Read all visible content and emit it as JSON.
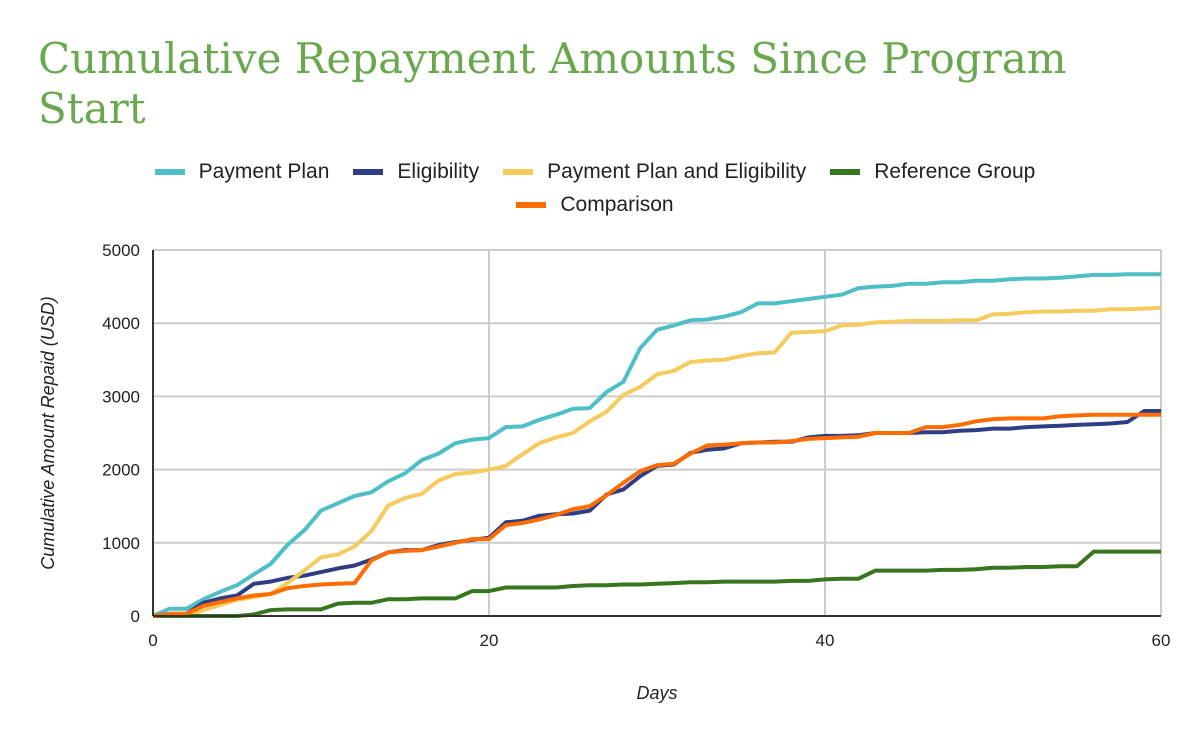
{
  "chart_data": {
    "type": "line",
    "title": "Cumulative Repayment Amounts Since Program Start",
    "xlabel": "Days",
    "ylabel": "Cumulative Amount Repaid (USD)",
    "xlim": [
      0,
      60
    ],
    "ylim": [
      0,
      5000
    ],
    "xticks": [
      0,
      20,
      40,
      60
    ],
    "yticks": [
      0,
      1000,
      2000,
      3000,
      4000,
      5000
    ],
    "grid": true,
    "legend_position": "top",
    "x": [
      0,
      1,
      2,
      3,
      4,
      5,
      6,
      7,
      8,
      9,
      10,
      11,
      12,
      13,
      14,
      15,
      16,
      17,
      18,
      19,
      20,
      21,
      22,
      23,
      24,
      25,
      26,
      27,
      28,
      29,
      30,
      31,
      32,
      33,
      34,
      35,
      36,
      37,
      38,
      39,
      40,
      41,
      42,
      43,
      44,
      45,
      46,
      47,
      48,
      49,
      50,
      51,
      52,
      53,
      54,
      55,
      56,
      57,
      58,
      59,
      60
    ],
    "series": [
      {
        "name": "Payment Plan",
        "color": "#4ebfc6",
        "values": [
          0,
          100,
          100,
          230,
          330,
          420,
          570,
          710,
          970,
          1170,
          1440,
          1540,
          1640,
          1690,
          1840,
          1950,
          2130,
          2220,
          2360,
          2410,
          2430,
          2580,
          2590,
          2680,
          2750,
          2830,
          2840,
          3060,
          3200,
          3660,
          3910,
          3970,
          4040,
          4050,
          4090,
          4150,
          4270,
          4270,
          4300,
          4330,
          4360,
          4390,
          4480,
          4500,
          4510,
          4540,
          4540,
          4560,
          4560,
          4580,
          4580,
          4600,
          4610,
          4610,
          4620,
          4640,
          4660,
          4660,
          4670,
          4670,
          4670
        ]
      },
      {
        "name": "Eligibility",
        "color": "#2e3e85",
        "values": [
          0,
          20,
          30,
          180,
          240,
          280,
          440,
          470,
          520,
          550,
          600,
          650,
          690,
          770,
          870,
          900,
          900,
          970,
          1010,
          1040,
          1070,
          1280,
          1300,
          1370,
          1390,
          1400,
          1440,
          1660,
          1730,
          1910,
          2050,
          2070,
          2230,
          2270,
          2290,
          2360,
          2370,
          2380,
          2380,
          2440,
          2460,
          2460,
          2470,
          2500,
          2500,
          2500,
          2510,
          2510,
          2530,
          2540,
          2560,
          2560,
          2580,
          2590,
          2600,
          2610,
          2620,
          2630,
          2650,
          2800,
          2800
        ]
      },
      {
        "name": "Payment Plan and Eligibility",
        "color": "#f6cb5d",
        "values": [
          0,
          0,
          0,
          80,
          150,
          220,
          260,
          300,
          450,
          620,
          800,
          840,
          950,
          1160,
          1510,
          1610,
          1670,
          1850,
          1940,
          1960,
          2000,
          2050,
          2210,
          2360,
          2440,
          2500,
          2660,
          2790,
          3020,
          3130,
          3300,
          3350,
          3470,
          3490,
          3500,
          3550,
          3590,
          3600,
          3870,
          3880,
          3890,
          3970,
          3980,
          4010,
          4020,
          4030,
          4030,
          4030,
          4040,
          4040,
          4120,
          4130,
          4150,
          4160,
          4160,
          4170,
          4170,
          4190,
          4190,
          4200,
          4210
        ]
      },
      {
        "name": "Reference Group",
        "color": "#38761d",
        "values": [
          0,
          0,
          0,
          0,
          0,
          0,
          20,
          80,
          90,
          90,
          90,
          170,
          180,
          180,
          230,
          230,
          240,
          240,
          240,
          340,
          340,
          390,
          390,
          390,
          390,
          410,
          420,
          420,
          430,
          430,
          440,
          450,
          460,
          460,
          470,
          470,
          470,
          470,
          480,
          480,
          500,
          510,
          510,
          620,
          620,
          620,
          620,
          630,
          630,
          640,
          660,
          660,
          670,
          670,
          680,
          680,
          880,
          880,
          880,
          880,
          880
        ]
      },
      {
        "name": "Comparison",
        "color": "#ff6d01",
        "values": [
          0,
          30,
          30,
          140,
          190,
          240,
          280,
          300,
          380,
          410,
          430,
          440,
          450,
          760,
          870,
          890,
          900,
          950,
          1000,
          1050,
          1050,
          1240,
          1270,
          1320,
          1380,
          1460,
          1500,
          1650,
          1820,
          1980,
          2060,
          2080,
          2220,
          2330,
          2340,
          2360,
          2370,
          2370,
          2390,
          2420,
          2430,
          2440,
          2450,
          2500,
          2500,
          2500,
          2580,
          2580,
          2610,
          2660,
          2690,
          2700,
          2700,
          2700,
          2730,
          2740,
          2750,
          2750,
          2750,
          2750,
          2750
        ]
      }
    ]
  }
}
